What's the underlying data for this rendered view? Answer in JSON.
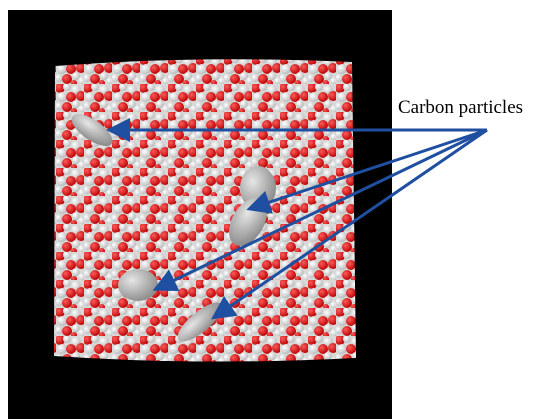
{
  "annotation": {
    "label": "Carbon particles"
  }
}
